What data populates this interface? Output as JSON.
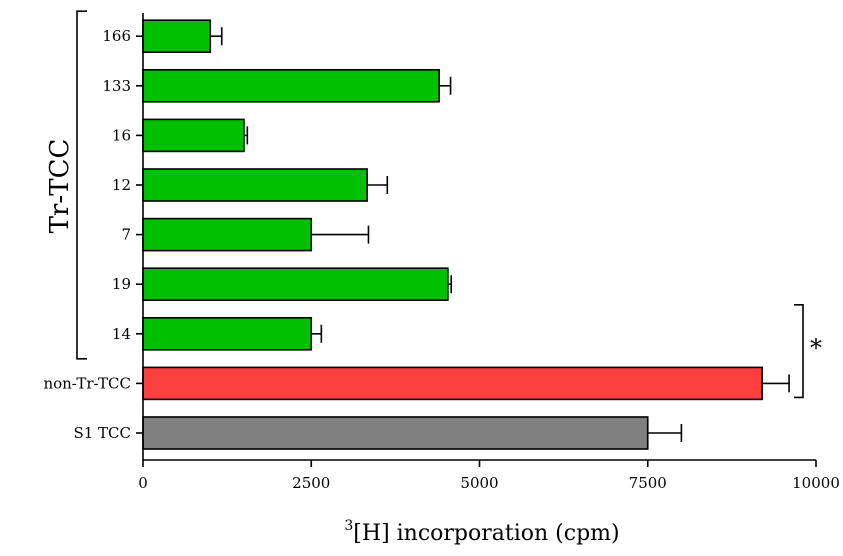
{
  "chart_data": {
    "type": "bar",
    "orientation": "horizontal",
    "categories": [
      "S1 TCC",
      "non-Tr-TCC",
      "14",
      "19",
      "7",
      "12",
      "16",
      "133",
      "166"
    ],
    "values": [
      7500,
      9200,
      2500,
      4530,
      2500,
      3330,
      1500,
      4400,
      1000
    ],
    "errors": [
      500,
      400,
      150,
      50,
      850,
      300,
      50,
      170,
      170
    ],
    "bar_colors": [
      "#808080",
      "#fc4040",
      "#00c000",
      "#00c000",
      "#00c000",
      "#00c000",
      "#00c000",
      "#00c000",
      "#00c000"
    ],
    "xlabel_sup": "3",
    "xlabel": "[H] incorporation (cpm)",
    "xlim": [
      0,
      10000
    ],
    "xticks": [
      "0",
      "2500",
      "5000",
      "7500",
      "10000"
    ],
    "group_label": "Tr-TCC",
    "significance_mark": "*",
    "grid": false
  }
}
